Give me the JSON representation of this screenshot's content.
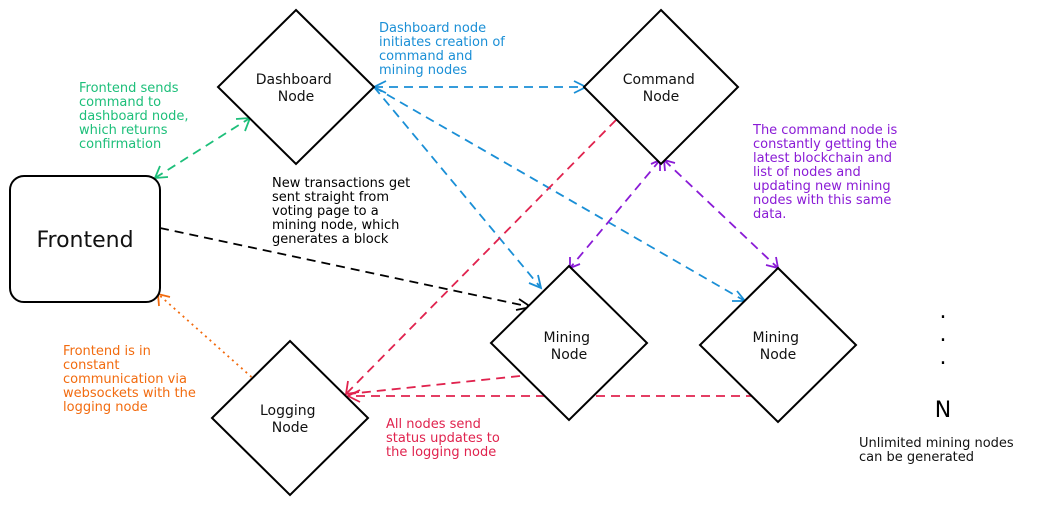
{
  "colors": {
    "black": "#000000",
    "green": "#1dbf7a",
    "blue": "#1a8fd6",
    "red": "#e0234e",
    "purple": "#8a1bd6",
    "orange": "#f26b0f"
  },
  "nodes": {
    "frontend": "Frontend",
    "dashboard": [
      "Dashboard",
      "Node"
    ],
    "command": [
      "Command",
      "Node"
    ],
    "mining1": [
      "Mining",
      "Node"
    ],
    "mining2": [
      "Mining",
      "Node"
    ],
    "logging": [
      "Logging",
      "Node"
    ]
  },
  "ellipsis": {
    "dots": ".",
    "label": "N"
  },
  "annotations": {
    "frontend_dashboard": [
      "Frontend sends",
      "command to",
      "dashboard node,",
      "which returns",
      "confirmation"
    ],
    "dashboard_creation": [
      "Dashboard node",
      "initiates creation of",
      "command and",
      "mining nodes"
    ],
    "transactions": [
      "New transactions get",
      "sent straight from",
      "voting page to a",
      "mining node, which",
      "generates a block"
    ],
    "command_node": [
      "The command node is",
      "constantly getting the",
      "latest blockchain and",
      "list of nodes and",
      "updating new mining",
      "nodes with this same",
      "data."
    ],
    "logging_frontend": [
      "Frontend is in",
      "constant",
      "communication via",
      "websockets with the",
      "logging node"
    ],
    "status_updates": [
      "All nodes send",
      "status updates to",
      "the logging node"
    ],
    "unlimited": [
      "Unlimited mining nodes",
      "can be generated"
    ]
  }
}
